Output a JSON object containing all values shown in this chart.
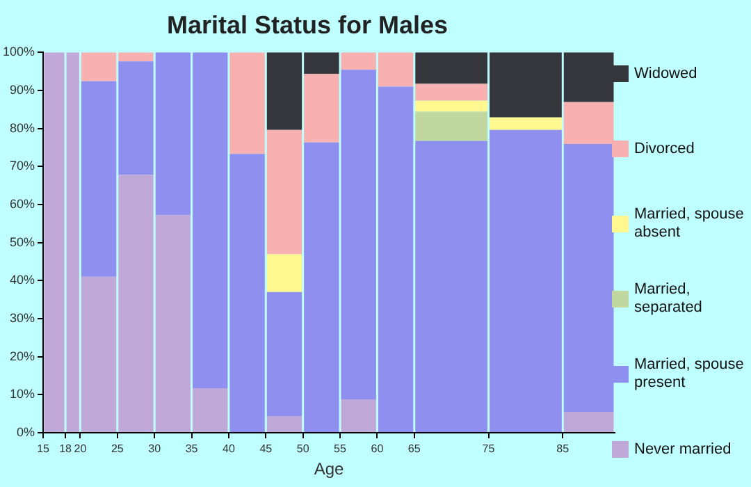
{
  "chart_data": {
    "type": "bar",
    "title": "Marital Status for Males",
    "xlabel": "Age",
    "x": [
      16.5,
      19,
      22.5,
      27.5,
      32.5,
      37.5,
      42.5,
      47.5,
      52.5,
      57.5,
      62.5,
      70,
      80,
      88.5
    ],
    "xlim": [
      15,
      92
    ],
    "xticks": [
      15,
      18,
      20,
      25,
      30,
      35,
      40,
      45,
      50,
      55,
      60,
      65,
      75,
      85
    ],
    "ylim": [
      0,
      100
    ],
    "yticks": [
      {
        "value": 0,
        "label": "0%"
      },
      {
        "value": 10,
        "label": "10%"
      },
      {
        "value": 20,
        "label": "20%"
      },
      {
        "value": 30,
        "label": "30%"
      },
      {
        "value": 40,
        "label": "40%"
      },
      {
        "value": 50,
        "label": "50%"
      },
      {
        "value": 60,
        "label": "60%"
      },
      {
        "value": 70,
        "label": "70%"
      },
      {
        "value": 80,
        "label": "80%"
      },
      {
        "value": 90,
        "label": "90%"
      },
      {
        "value": 100,
        "label": "100%"
      }
    ],
    "stacked": true,
    "grid": false,
    "legend": "right",
    "series": [
      {
        "name": "Never married",
        "color": "#c0a8d8",
        "values": [
          100,
          100,
          41,
          67.8,
          57.2,
          11.7,
          0,
          4.4,
          0,
          8.8,
          0,
          0,
          0,
          5.5
        ]
      },
      {
        "name": "Married, spouse present",
        "color": "#8f8ff0",
        "values": [
          0,
          0,
          51.4,
          29.8,
          42.8,
          88.3,
          73.3,
          32.6,
          76.3,
          86.6,
          91,
          76.7,
          79.6,
          70.4
        ]
      },
      {
        "name": "Married, separated",
        "color": "#c0d8a0",
        "values": [
          0,
          0,
          0,
          0,
          0,
          0,
          0,
          0,
          0,
          0,
          0,
          7.7,
          0,
          0
        ]
      },
      {
        "name": "Married, spouse absent",
        "color": "#fff890",
        "values": [
          0,
          0,
          0,
          0,
          0,
          0,
          0,
          9.9,
          0,
          0,
          0,
          2.9,
          3.3,
          0
        ]
      },
      {
        "name": "Divorced",
        "color": "#f8b0b0",
        "values": [
          0,
          0,
          7.6,
          2.4,
          0,
          0,
          26.7,
          32.7,
          18,
          4.6,
          9,
          4.4,
          0,
          11
        ]
      },
      {
        "name": "Widowed",
        "color": "#35363c",
        "values": [
          0,
          0,
          0,
          0,
          0,
          0,
          0,
          20.4,
          5.7,
          0,
          0,
          8.3,
          17.1,
          13.1
        ]
      }
    ]
  }
}
